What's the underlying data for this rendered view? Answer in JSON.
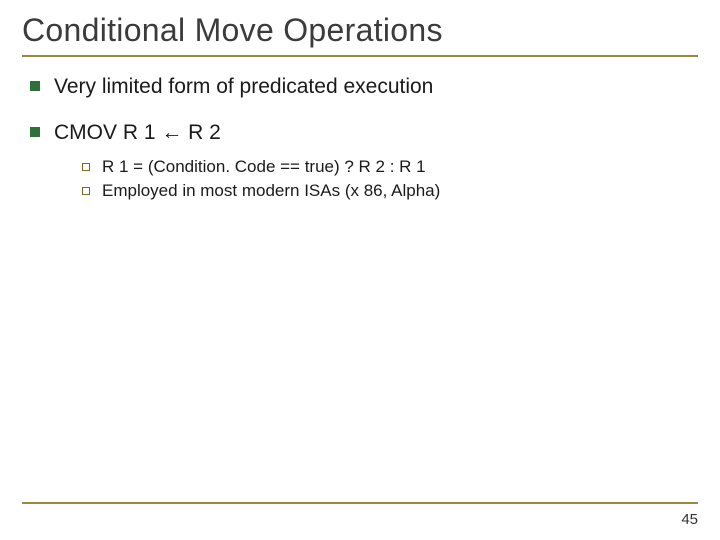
{
  "colors": {
    "title": "#3b3b3b",
    "body": "#1a1a1a",
    "rule": "#9b8a3e",
    "bullet_l1": "#2f6f3a",
    "bullet_l2_border": "#7a6a20",
    "pagenum": "#333333"
  },
  "fonts": {
    "title_size": 32,
    "l1_size": 21,
    "l2_size": 17,
    "pagenum_size": 15
  },
  "title": "Conditional Move Operations",
  "bullets": {
    "b1": "Very limited form of predicated execution",
    "b2": "CMOV R 1 ← R 2",
    "b2_sub1": "R 1 = (Condition. Code == true) ? R 2 : R 1",
    "b2_sub2": "Employed in most modern ISAs (x 86, Alpha)"
  },
  "page_number": "45"
}
